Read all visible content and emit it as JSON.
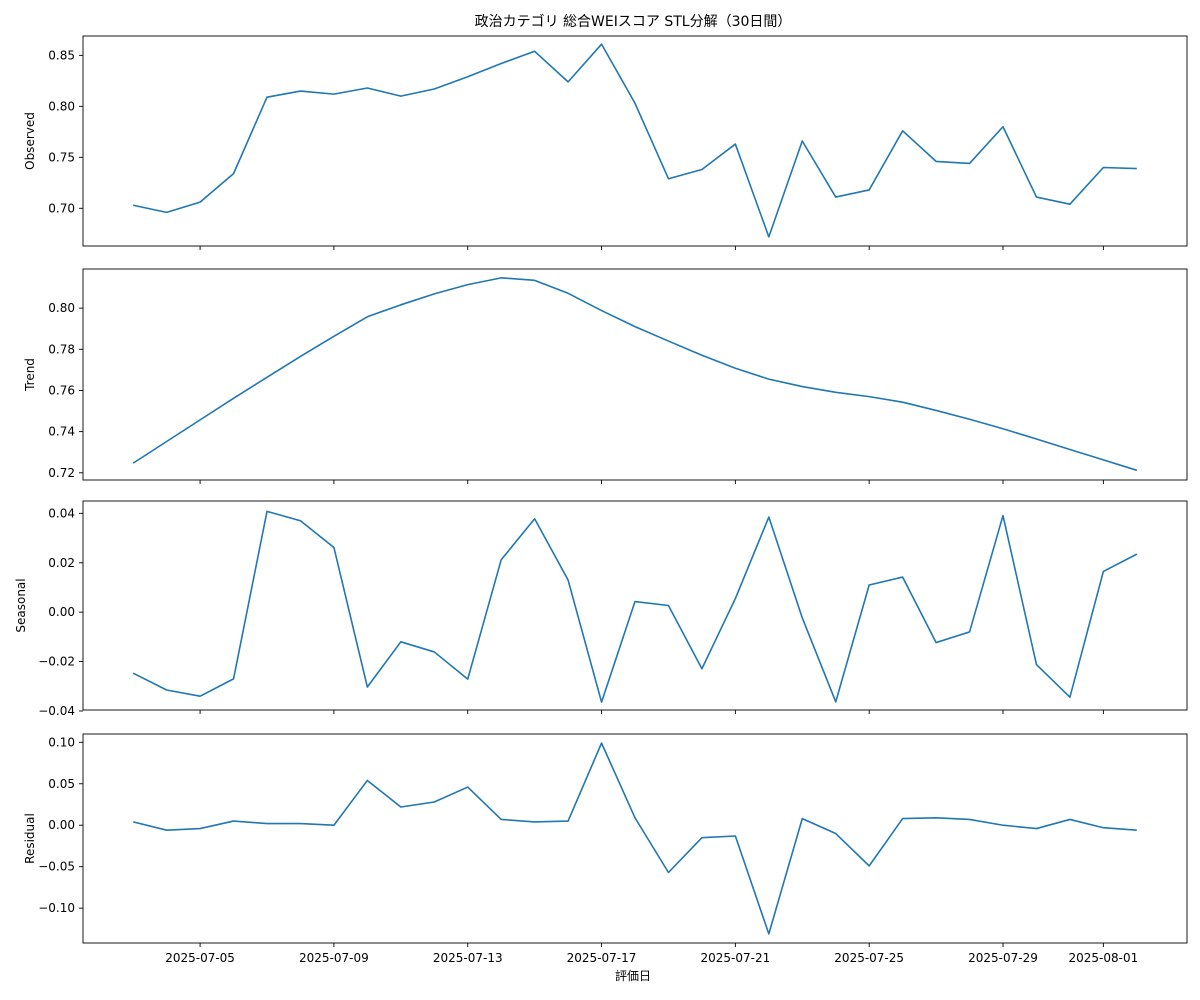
{
  "chart_data": {
    "type": "line",
    "title": "政治カテゴリ 総合WEIスコア STL分解（30日間）",
    "xlabel": "評価日",
    "x": [
      "2025-07-03",
      "2025-07-04",
      "2025-07-05",
      "2025-07-06",
      "2025-07-07",
      "2025-07-08",
      "2025-07-09",
      "2025-07-10",
      "2025-07-11",
      "2025-07-12",
      "2025-07-13",
      "2025-07-14",
      "2025-07-15",
      "2025-07-16",
      "2025-07-17",
      "2025-07-18",
      "2025-07-19",
      "2025-07-20",
      "2025-07-21",
      "2025-07-22",
      "2025-07-23",
      "2025-07-24",
      "2025-07-25",
      "2025-07-26",
      "2025-07-27",
      "2025-07-28",
      "2025-07-29",
      "2025-07-30",
      "2025-07-31",
      "2025-08-01",
      "2025-08-02"
    ],
    "x_tick_labels": [
      "2025-07-05",
      "2025-07-09",
      "2025-07-13",
      "2025-07-17",
      "2025-07-21",
      "2025-07-25",
      "2025-07-29",
      "2025-08-01"
    ],
    "line_color": "#1f77b4",
    "grid": false,
    "panels": [
      {
        "ylabel": "Observed",
        "ylim": [
          0.663,
          0.869
        ],
        "yticks": [
          0.7,
          0.75,
          0.8,
          0.85
        ],
        "ytick_labels": [
          "0.70",
          "0.75",
          "0.80",
          "0.85"
        ],
        "values": [
          0.703,
          0.696,
          0.706,
          0.734,
          0.809,
          0.815,
          0.812,
          0.818,
          0.81,
          0.817,
          0.829,
          0.842,
          0.854,
          0.824,
          0.861,
          0.803,
          0.729,
          0.738,
          0.763,
          0.672,
          0.766,
          0.711,
          0.718,
          0.776,
          0.746,
          0.744,
          0.78,
          0.711,
          0.704,
          0.74,
          0.739
        ]
      },
      {
        "ylabel": "Trend",
        "ylim": [
          0.7165,
          0.819
        ],
        "yticks": [
          0.72,
          0.74,
          0.76,
          0.78,
          0.8
        ],
        "ytick_labels": [
          "0.72",
          "0.74",
          "0.76",
          "0.78",
          "0.80"
        ],
        "values": [
          0.7247,
          0.7352,
          0.7457,
          0.7562,
          0.7664,
          0.7765,
          0.7863,
          0.7958,
          0.8016,
          0.8069,
          0.8114,
          0.8147,
          0.8135,
          0.8072,
          0.7988,
          0.791,
          0.784,
          0.7771,
          0.7708,
          0.7655,
          0.7619,
          0.7591,
          0.757,
          0.7543,
          0.7503,
          0.746,
          0.7414,
          0.7364,
          0.7313,
          0.7263,
          0.7212
        ]
      },
      {
        "ylabel": "Seasonal",
        "ylim": [
          -0.0396,
          0.045
        ],
        "yticks": [
          -0.04,
          -0.02,
          0.0,
          0.02,
          0.04
        ],
        "ytick_labels": [
          "−0.04",
          "−0.02",
          "0.00",
          "0.02",
          "0.04"
        ],
        "values": [
          -0.0247,
          -0.0315,
          -0.034,
          -0.027,
          0.0408,
          0.037,
          0.0262,
          -0.0303,
          -0.012,
          -0.0161,
          -0.0271,
          0.0212,
          0.0378,
          0.013,
          -0.0364,
          0.0043,
          0.0027,
          -0.0229,
          0.0055,
          0.0385,
          -0.0023,
          -0.0363,
          0.011,
          0.0142,
          -0.0123,
          -0.008,
          0.0391,
          -0.0212,
          -0.0344,
          0.0165,
          0.0235
        ]
      },
      {
        "ylabel": "Residual",
        "ylim": [
          -0.142,
          0.11
        ],
        "yticks": [
          -0.1,
          -0.05,
          0.0,
          0.05,
          0.1
        ],
        "ytick_labels": [
          "−0.10",
          "−0.05",
          "0.00",
          "0.05",
          "0.10"
        ],
        "values": [
          0.004,
          -0.006,
          -0.004,
          0.005,
          0.002,
          0.002,
          0.0,
          0.054,
          0.022,
          0.028,
          0.046,
          0.007,
          0.004,
          0.005,
          0.099,
          0.009,
          -0.057,
          -0.015,
          -0.013,
          -0.131,
          0.008,
          -0.01,
          -0.049,
          0.008,
          0.009,
          0.007,
          0.0,
          -0.004,
          0.007,
          -0.003,
          -0.006
        ]
      }
    ]
  }
}
